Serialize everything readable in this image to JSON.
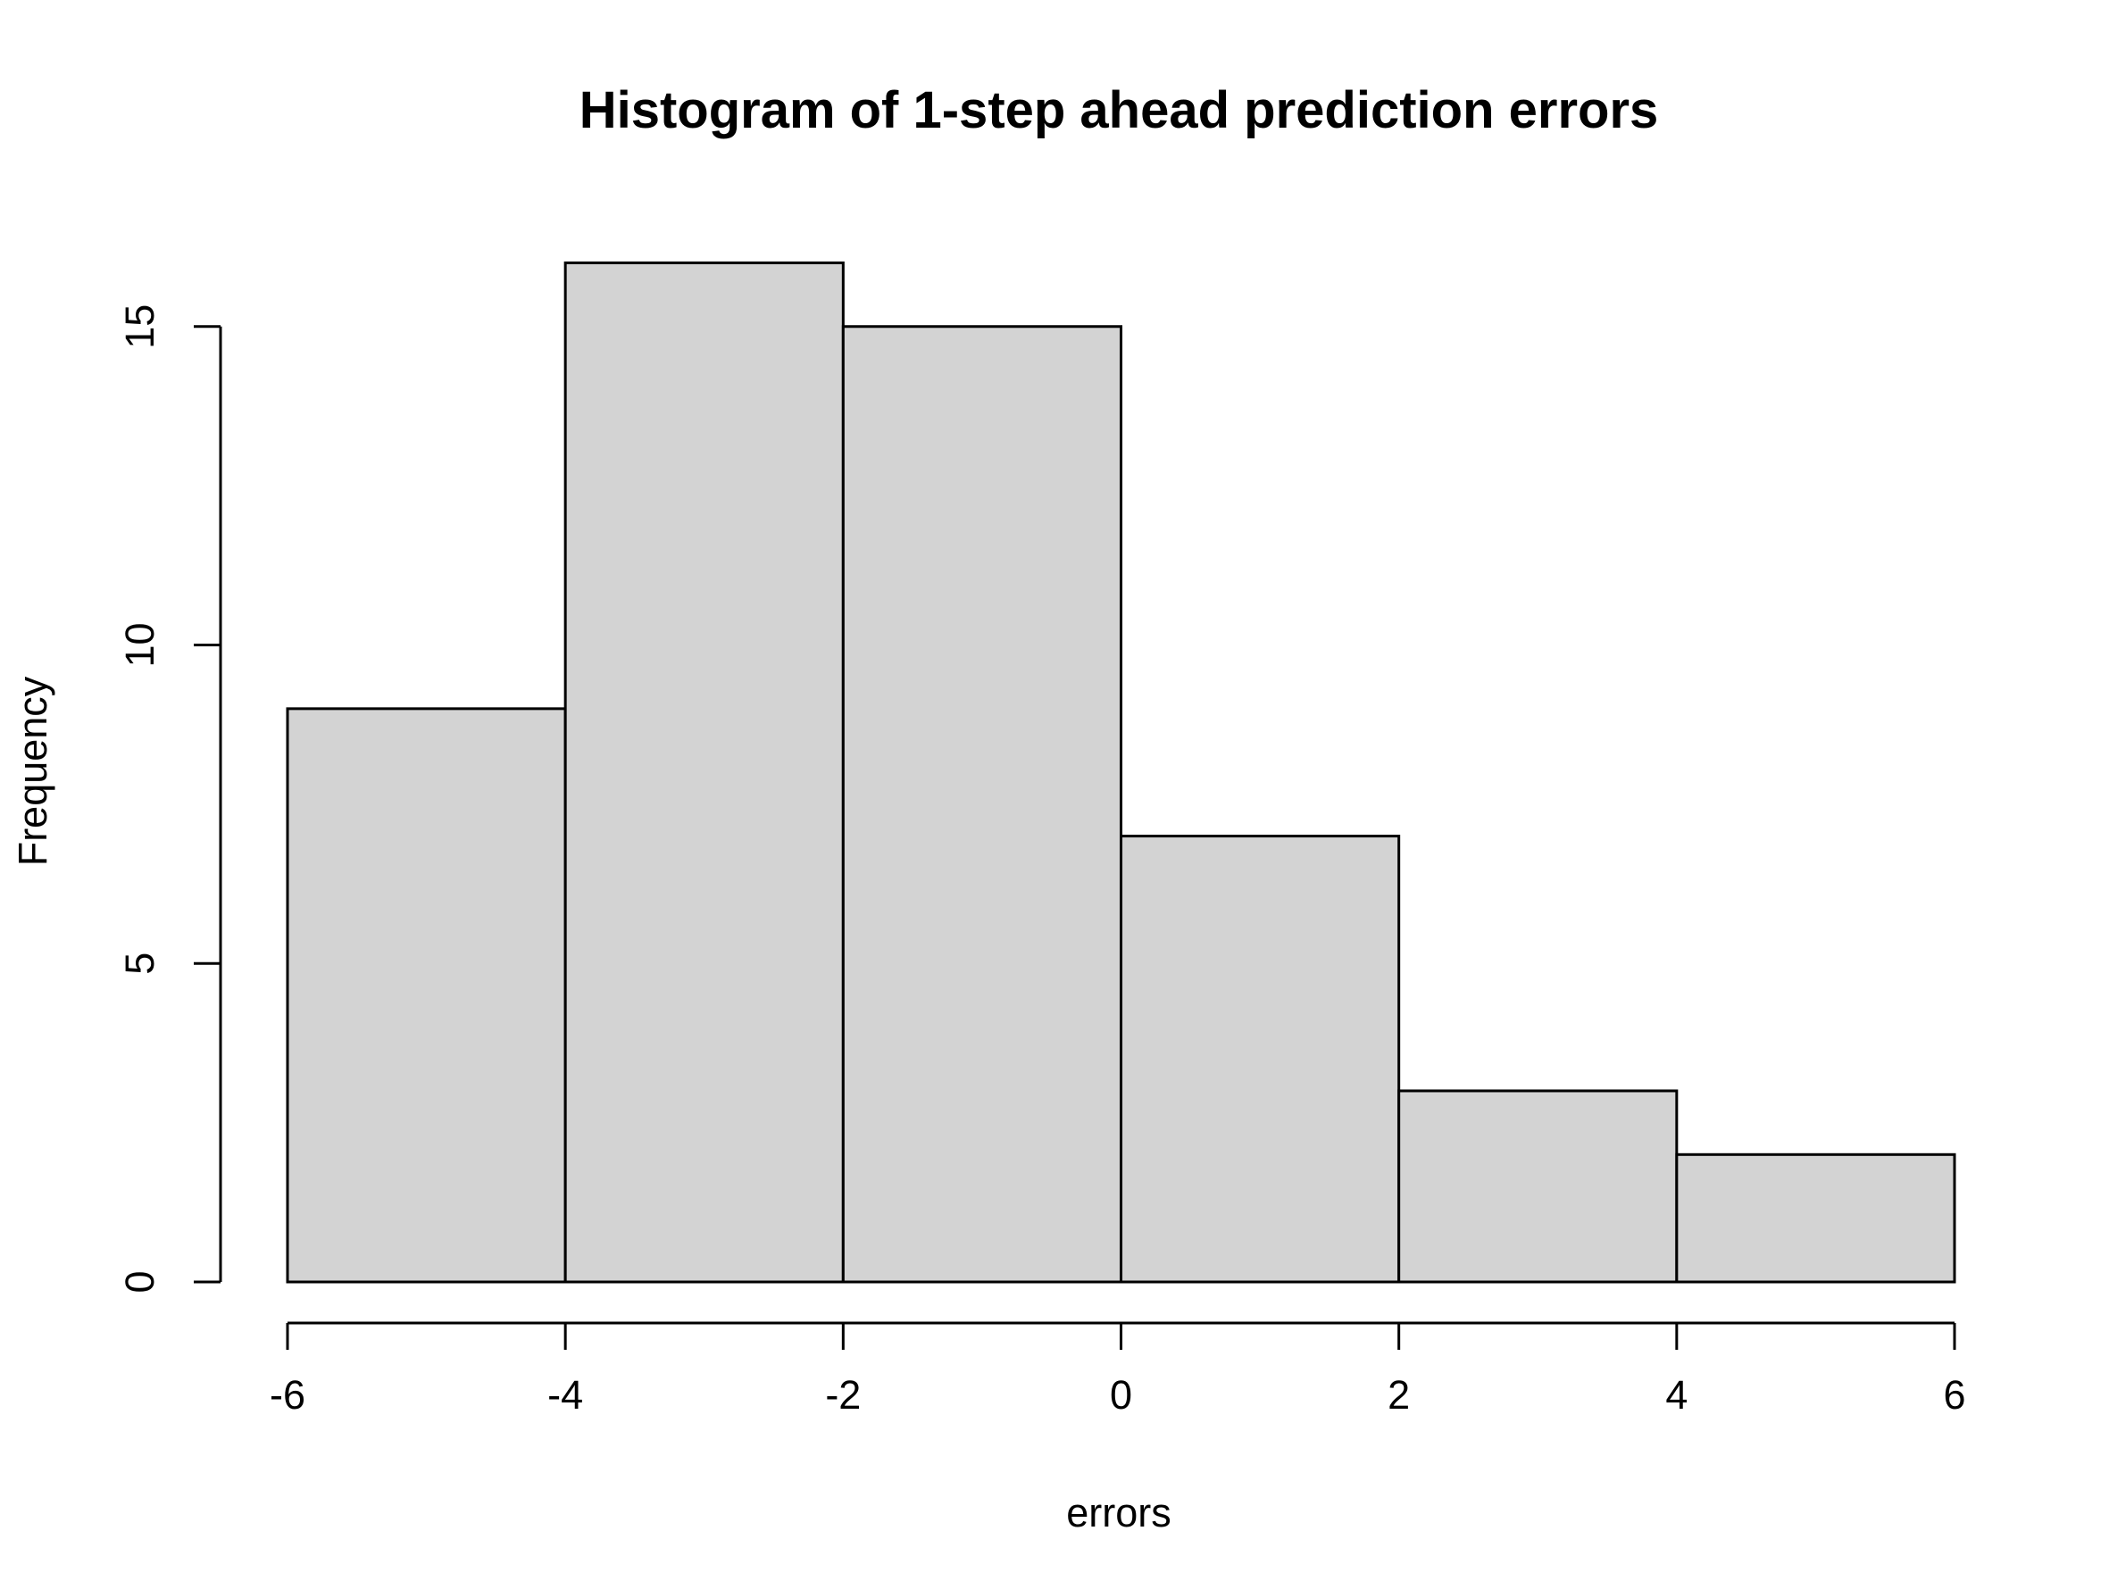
{
  "chart_data": {
    "type": "bar",
    "title": "Histogram of 1-step ahead prediction errors",
    "xlabel": "errors",
    "ylabel": "Frequency",
    "bins": [
      {
        "from": -6,
        "to": -4,
        "count": 9
      },
      {
        "from": -4,
        "to": -2,
        "count": 16
      },
      {
        "from": -2,
        "to": 0,
        "count": 15
      },
      {
        "from": 0,
        "to": 2,
        "count": 7
      },
      {
        "from": 2,
        "to": 4,
        "count": 3
      },
      {
        "from": 4,
        "to": 6,
        "count": 2
      }
    ],
    "x_ticks": [
      -6,
      -4,
      -2,
      0,
      2,
      4,
      6
    ],
    "y_ticks": [
      0,
      5,
      10,
      15
    ],
    "xlim": [
      -6,
      6
    ],
    "ylim": [
      0,
      16
    ],
    "bar_color": "#d3d3d3",
    "grid": false,
    "legend": "none"
  }
}
